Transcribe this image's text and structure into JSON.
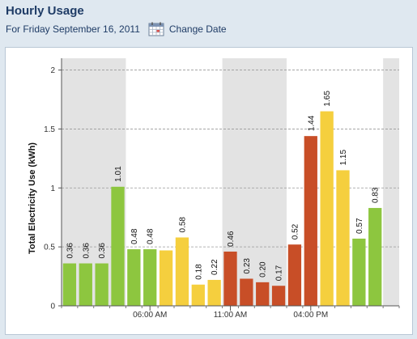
{
  "header": {
    "title": "Hourly Usage",
    "subtitle": "For Friday September 16, 2011",
    "change_date_label": "Change Date",
    "calendar_icon": "calendar-icon"
  },
  "colors": {
    "green": "#8dc63f",
    "yellow": "#f5cf3e",
    "red": "#c84e27",
    "band": "#e3e3e3",
    "title": "#1f3c66"
  },
  "chart_data": {
    "type": "bar",
    "ylabel": "Total Electricity Use (kWh)",
    "xlabel": "",
    "ylim": [
      0,
      2.1
    ],
    "yticks": [
      0,
      0.5,
      1,
      1.5,
      2
    ],
    "ytick_labels": [
      "0",
      "0.5",
      "1",
      "1.5",
      "2"
    ],
    "xtick_labels": [
      "06:00 AM",
      "11:00 AM",
      "04:00 PM"
    ],
    "xtick_hours": [
      6,
      11,
      16
    ],
    "hours": [
      1,
      2,
      3,
      4,
      5,
      6,
      7,
      8,
      9,
      10,
      11,
      12,
      13,
      14,
      15,
      16,
      17,
      18,
      19,
      20,
      21,
      22,
      23,
      24
    ],
    "values": [
      0.36,
      0.36,
      0.36,
      1.01,
      0.48,
      0.48,
      0.47,
      0.58,
      0.18,
      0.22,
      0.46,
      0.23,
      0.2,
      0.17,
      0.52,
      1.44,
      1.65,
      1.15,
      0.57,
      0.83
    ],
    "labels": [
      "0.36",
      "0.36",
      "0.36",
      "1.01",
      "0.48",
      "0.48",
      "",
      "0.58",
      "0.18",
      "0.22",
      "0.46",
      "0.23",
      "0.20",
      "0.17",
      "0.52",
      "1.44",
      "1.65",
      "1.15",
      "0.57",
      "0.83"
    ],
    "rates": [
      "green",
      "green",
      "green",
      "green",
      "green",
      "green",
      "yellow",
      "yellow",
      "yellow",
      "yellow",
      "red",
      "red",
      "red",
      "red",
      "red",
      "red",
      "yellow",
      "yellow",
      "green",
      "green"
    ],
    "shaded_hours": [
      [
        0,
        4
      ],
      [
        10,
        14
      ],
      [
        20,
        21
      ]
    ],
    "grid": true
  }
}
